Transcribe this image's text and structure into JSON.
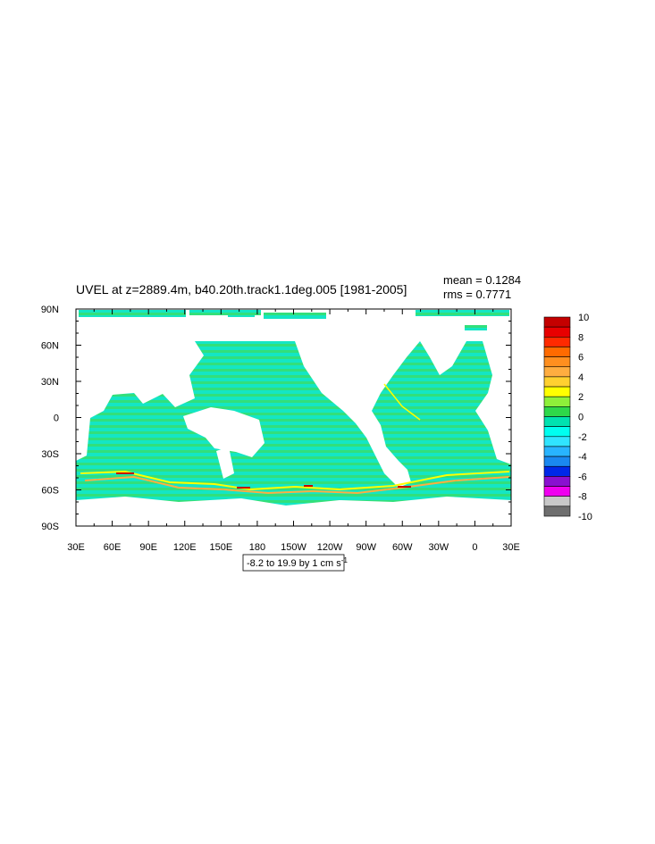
{
  "map": {
    "title": "UVEL at z=2889.4m, b40.20th.track1.1deg.005 [1981-2005]",
    "mean": "mean = 0.1284",
    "rms": "rms = 0.7771",
    "x_labels": [
      "30E",
      "60E",
      "90E",
      "120E",
      "150E",
      "180",
      "150W",
      "120W",
      "90W",
      "60W",
      "30W",
      "0",
      "30E"
    ],
    "y_labels": [
      "90N",
      "60N",
      "30N",
      "0",
      "30S",
      "60S",
      "90S"
    ],
    "colorbar": {
      "colors": [
        "#c40000",
        "#e80000",
        "#ff2a00",
        "#ff6a00",
        "#ff8f1f",
        "#ffad40",
        "#ffd030",
        "#ffff00",
        "#8ef03a",
        "#2ed84a",
        "#00e2b0",
        "#00fff0",
        "#30e4ff",
        "#28b4ff",
        "#1a88f0",
        "#0028e8",
        "#8a10d0",
        "#f000f0",
        "#c8c8c8",
        "#6e6e6e"
      ],
      "levels": [
        10,
        8,
        6,
        4,
        2,
        0,
        -2,
        -4,
        -6,
        -8,
        -10
      ]
    },
    "footer": {
      "text": "-8.2 to 19.9 by 1 cm s",
      "superscript": "-1"
    }
  }
}
